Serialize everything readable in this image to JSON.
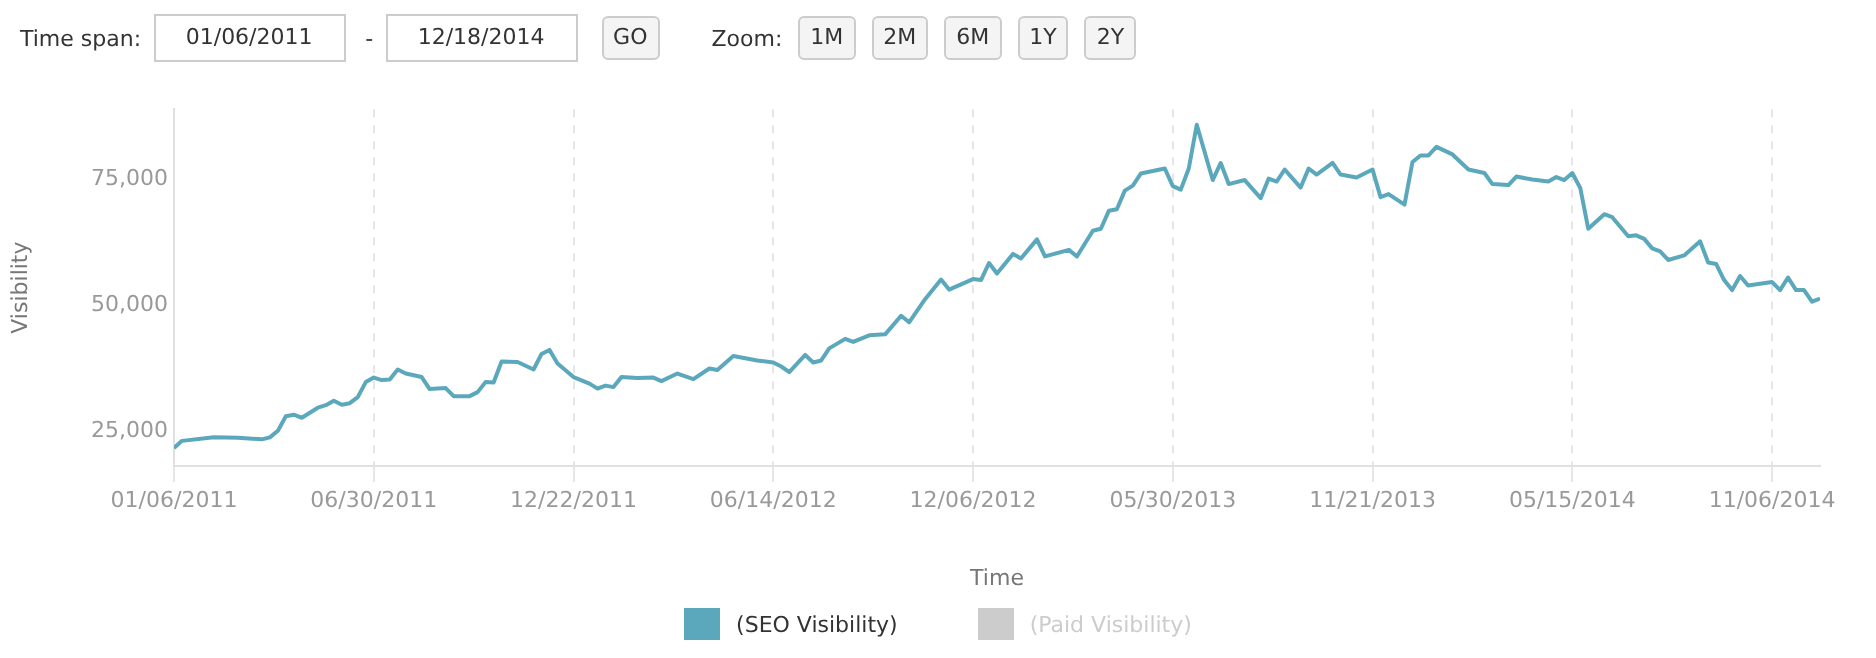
{
  "chart_data": {
    "type": "line",
    "xlabel": "Time",
    "ylabel": "Visibility",
    "legend": "bottom",
    "grid": "x",
    "marker": "none",
    "line_style": "solid",
    "annotations": [
      "Time span:",
      "01/06/2011",
      "-",
      "12/18/2014",
      "GO",
      "Zoom:",
      "1M",
      "2M",
      "6M",
      "1Y",
      "2Y"
    ],
    "xlim": [
      "2011-01-06",
      "2014-12-18"
    ],
    "xticks": [
      {
        "value": "2011-01-06",
        "label": "01/06/2011"
      },
      {
        "value": "2011-06-30",
        "label": "06/30/2011"
      },
      {
        "value": "2011-12-22",
        "label": "12/22/2011"
      },
      {
        "value": "2012-06-14",
        "label": "06/14/2012"
      },
      {
        "value": "2012-12-06",
        "label": "12/06/2012"
      },
      {
        "value": "2013-05-30",
        "label": "05/30/2013"
      },
      {
        "value": "2013-11-21",
        "label": "11/21/2013"
      },
      {
        "value": "2014-05-15",
        "label": "05/15/2014"
      },
      {
        "value": "2014-11-06",
        "label": "11/06/2014"
      }
    ],
    "ylim": [
      18000,
      89000
    ],
    "yticks": [
      {
        "value": 25000,
        "label": "25,000"
      },
      {
        "value": 50000,
        "label": "50,000"
      },
      {
        "value": 75000,
        "label": "75,000"
      }
    ],
    "x": [
      "2011-01-06",
      "2011-01-13",
      "2011-02-10",
      "2011-03-03",
      "2011-03-24",
      "2011-03-31",
      "2011-04-07",
      "2011-04-14",
      "2011-04-21",
      "2011-04-28",
      "2011-05-12",
      "2011-05-19",
      "2011-05-26",
      "2011-06-02",
      "2011-06-09",
      "2011-06-16",
      "2011-06-23",
      "2011-06-30",
      "2011-07-07",
      "2011-07-14",
      "2011-07-21",
      "2011-07-28",
      "2011-08-11",
      "2011-08-18",
      "2011-09-01",
      "2011-09-08",
      "2011-09-22",
      "2011-09-29",
      "2011-10-06",
      "2011-10-13",
      "2011-10-20",
      "2011-11-03",
      "2011-11-17",
      "2011-11-24",
      "2011-12-01",
      "2011-12-08",
      "2011-12-22",
      "2012-01-05",
      "2012-01-12",
      "2012-01-19",
      "2012-01-26",
      "2012-02-02",
      "2012-02-16",
      "2012-03-01",
      "2012-03-08",
      "2012-03-22",
      "2012-04-05",
      "2012-04-19",
      "2012-04-26",
      "2012-05-10",
      "2012-05-31",
      "2012-06-14",
      "2012-06-21",
      "2012-06-28",
      "2012-07-12",
      "2012-07-19",
      "2012-07-26",
      "2012-08-02",
      "2012-08-16",
      "2012-08-23",
      "2012-09-06",
      "2012-09-20",
      "2012-10-04",
      "2012-10-11",
      "2012-10-25",
      "2012-11-08",
      "2012-11-15",
      "2012-12-06",
      "2012-12-13",
      "2012-12-20",
      "2012-12-27",
      "2013-01-10",
      "2013-01-17",
      "2013-01-31",
      "2013-02-07",
      "2013-02-28",
      "2013-03-07",
      "2013-03-21",
      "2013-03-28",
      "2013-04-04",
      "2013-04-11",
      "2013-04-18",
      "2013-04-25",
      "2013-05-02",
      "2013-05-23",
      "2013-05-30",
      "2013-06-06",
      "2013-06-13",
      "2013-06-20",
      "2013-07-04",
      "2013-07-11",
      "2013-07-18",
      "2013-08-01",
      "2013-08-15",
      "2013-08-22",
      "2013-08-29",
      "2013-09-05",
      "2013-09-19",
      "2013-09-26",
      "2013-10-03",
      "2013-10-17",
      "2013-10-24",
      "2013-11-07",
      "2013-11-21",
      "2013-11-28",
      "2013-12-05",
      "2013-12-19",
      "2013-12-26",
      "2014-01-02",
      "2014-01-09",
      "2014-01-16",
      "2014-01-30",
      "2014-02-13",
      "2014-02-27",
      "2014-03-06",
      "2014-03-20",
      "2014-03-27",
      "2014-04-10",
      "2014-04-24",
      "2014-05-01",
      "2014-05-08",
      "2014-05-15",
      "2014-05-22",
      "2014-05-29",
      "2014-06-12",
      "2014-06-19",
      "2014-07-03",
      "2014-07-10",
      "2014-07-17",
      "2014-07-24",
      "2014-07-31",
      "2014-08-07",
      "2014-08-21",
      "2014-09-04",
      "2014-09-11",
      "2014-09-18",
      "2014-09-25",
      "2014-10-02",
      "2014-10-09",
      "2014-10-16",
      "2014-11-06",
      "2014-11-13",
      "2014-11-20",
      "2014-11-27",
      "2014-12-04",
      "2014-12-11",
      "2014-12-18"
    ],
    "series": [
      {
        "name": "(SEO Visibility)",
        "color": "#5ba8bc",
        "values": [
          21600,
          23000,
          23700,
          23600,
          23300,
          23700,
          25000,
          27900,
          28200,
          27600,
          29600,
          30100,
          31000,
          30200,
          30500,
          31700,
          34700,
          35600,
          35100,
          35200,
          37200,
          36400,
          35700,
          33300,
          33500,
          31900,
          31900,
          32700,
          34700,
          34600,
          38800,
          38700,
          37200,
          40300,
          41100,
          38400,
          35700,
          34400,
          33400,
          34000,
          33700,
          35700,
          35500,
          35600,
          34900,
          36400,
          35300,
          37400,
          37100,
          39900,
          39000,
          38600,
          37800,
          36700,
          40100,
          38600,
          39000,
          41400,
          43300,
          42700,
          44000,
          44200,
          47900,
          46600,
          51200,
          55100,
          53100,
          55200,
          55000,
          58400,
          56300,
          60200,
          59300,
          63100,
          59700,
          61000,
          59700,
          64800,
          65200,
          68800,
          69100,
          72800,
          73800,
          76200,
          77200,
          73700,
          73000,
          77200,
          85900,
          74900,
          78300,
          74100,
          74900,
          71300,
          75200,
          74600,
          77000,
          73400,
          77200,
          76000,
          78300,
          76000,
          75400,
          77000,
          71500,
          72100,
          70000,
          78500,
          79800,
          79800,
          81500,
          80000,
          77000,
          76300,
          74100,
          73900,
          75600,
          75000,
          74600,
          75500,
          74900,
          76300,
          73300,
          65200,
          68100,
          67500,
          63700,
          63900,
          63200,
          61300,
          60700,
          59000,
          59900,
          62700,
          58500,
          58200,
          55000,
          53000,
          55800,
          53900,
          54600,
          53000,
          55500,
          53000,
          53000,
          50700,
          51300
        ]
      },
      {
        "name": "(Paid Visibility)",
        "color": "#cccccc",
        "values": [
          null,
          null,
          null,
          null,
          null,
          null,
          null,
          null,
          null,
          null,
          null,
          null,
          null,
          null,
          null,
          null,
          null,
          null,
          null,
          null,
          null,
          null,
          null,
          null,
          null,
          null,
          null,
          null,
          null,
          null,
          null,
          null,
          null,
          null,
          null,
          null,
          null,
          null,
          null,
          null,
          null,
          null,
          null,
          null,
          null,
          null,
          null,
          null,
          null,
          null,
          null,
          null,
          null,
          null,
          null,
          null,
          null,
          null,
          null,
          null,
          null,
          null,
          null,
          null,
          null,
          null,
          null,
          null,
          null,
          null,
          null,
          null,
          null,
          null,
          null,
          null,
          null,
          null,
          null,
          null,
          null,
          null,
          null,
          null,
          null,
          null,
          null,
          null,
          null,
          null,
          null,
          null,
          null,
          null,
          null,
          null,
          null,
          null,
          null,
          null,
          null,
          null,
          null,
          null,
          null,
          null,
          null,
          null,
          null,
          null,
          null,
          null,
          null,
          null,
          null,
          null,
          null,
          null,
          null,
          null,
          null,
          null,
          null,
          null,
          null,
          null,
          null,
          null,
          null,
          null,
          null,
          null,
          null,
          null,
          null,
          null,
          null,
          null,
          null,
          null,
          null,
          null,
          null,
          null,
          null,
          null,
          null
        ]
      }
    ]
  }
}
